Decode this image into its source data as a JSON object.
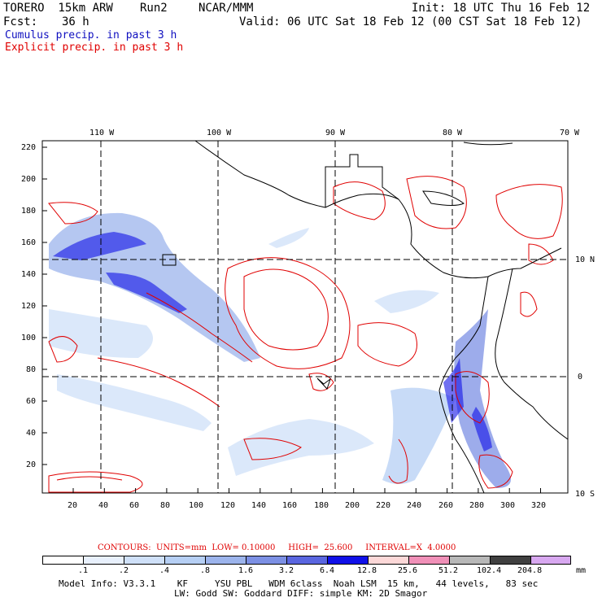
{
  "header": {
    "model": "TORERO  15km ARW",
    "run": "Run2",
    "org": "NCAR/MMM",
    "init": "Init: 18 UTC Thu 16 Feb 12",
    "fcst_label": "Fcst:",
    "fcst_value": "36 h",
    "valid": "Valid: 06 UTC Sat 18 Feb 12 (00 CST Sat 18 Feb 12)",
    "line_cumulus": "Cumulus precip. in past 3 h",
    "line_explicit": "Explicit precip. in past 3 h"
  },
  "colors": {
    "cumulus": "#1010c0",
    "explicit": "#e00000",
    "coast": "#000000"
  },
  "axes": {
    "lon_labels": [
      "110 W",
      "100 W",
      "90 W",
      "80 W",
      "70 W"
    ],
    "lat_labels": [
      "10 N",
      "0",
      "10 S"
    ],
    "y_ticks": [
      "220",
      "200",
      "180",
      "160",
      "140",
      "120",
      "100",
      "80",
      "60",
      "40",
      "20"
    ],
    "x_ticks": [
      "20",
      "40",
      "60",
      "80",
      "100",
      "120",
      "140",
      "160",
      "180",
      "200",
      "220",
      "240",
      "260",
      "280",
      "300",
      "320"
    ]
  },
  "contours": {
    "text": "CONTOURS:  UNITS=mm  LOW= 0.10000     HIGH=  25.600     INTERVAL=X  4.0000"
  },
  "colorbar": {
    "labels": [
      ".1",
      ".2",
      ".4",
      ".8",
      "1.6",
      "3.2",
      "6.4",
      "12.8",
      "25.6",
      "51.2",
      "102.4",
      "204.8"
    ],
    "unit": "mm",
    "colors": [
      "#ffffff",
      "#e8f0fc",
      "#cfe0f8",
      "#b6cff4",
      "#9cb4ec",
      "#7c90e4",
      "#5a66e0",
      "#1010e8",
      "#fcd8d8",
      "#f090b8",
      "#b8b8b8",
      "#404040",
      "#d8a8f0"
    ]
  },
  "model_info": {
    "line1": "Model Info: V3.3.1    KF     YSU PBL   WDM 6class  Noah LSM  15 km,   44 levels,   83 sec",
    "line2": "LW: Godd SW: Goddard DIFF: simple KM: 2D Smagor"
  }
}
